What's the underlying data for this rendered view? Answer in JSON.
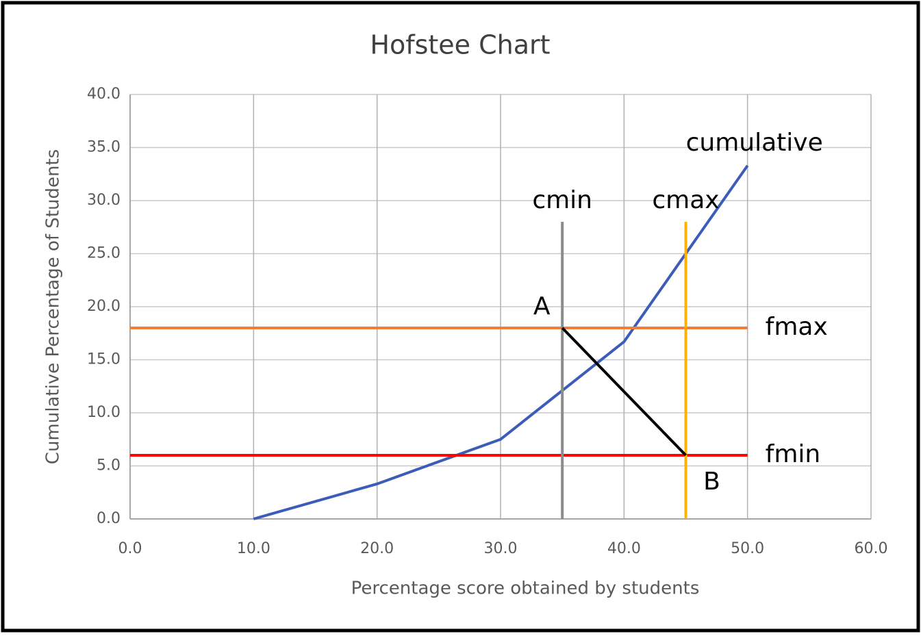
{
  "chart_data": {
    "type": "line",
    "title": "Hofstee Chart",
    "x_label": "Percentage score obtained by students",
    "y_label": "Cumulative Percentage of Students",
    "xlim": [
      0,
      60
    ],
    "xticks": [
      {
        "value": 0,
        "label": "0.0"
      },
      {
        "value": 10,
        "label": "10.0"
      },
      {
        "value": 20,
        "label": "20.0"
      },
      {
        "value": 30,
        "label": "30.0"
      },
      {
        "value": 40,
        "label": "40.0"
      },
      {
        "value": 50,
        "label": "50.0"
      },
      {
        "value": 60,
        "label": "60.0"
      }
    ],
    "ylim": [
      0,
      40
    ],
    "yticks": [
      {
        "value": 0,
        "label": "0.0"
      },
      {
        "value": 5,
        "label": "5.0"
      },
      {
        "value": 10,
        "label": "10.0"
      },
      {
        "value": 15,
        "label": "15.0"
      },
      {
        "value": 20,
        "label": "20.0"
      },
      {
        "value": 25,
        "label": "25.0"
      },
      {
        "value": 30,
        "label": "30.0"
      },
      {
        "value": 35,
        "label": "35.0"
      },
      {
        "value": 40,
        "label": "40.0"
      }
    ],
    "grid": true,
    "series": [
      {
        "name": "cumulative",
        "color": "#3b5cb8",
        "x": [
          10,
          20,
          30,
          40,
          50
        ],
        "values": [
          0,
          3.3,
          7.5,
          16.7,
          33.3
        ]
      },
      {
        "name": "fmax",
        "color": "#f07d3a",
        "x": [
          0,
          50
        ],
        "values": [
          18,
          18
        ]
      },
      {
        "name": "fmin",
        "color": "#ff0000",
        "x": [
          0,
          50
        ],
        "values": [
          6,
          6
        ]
      },
      {
        "name": "cmin",
        "color": "#8c8c8c",
        "x": [
          35,
          35
        ],
        "values": [
          0,
          28
        ]
      },
      {
        "name": "cmax",
        "color": "#ffb000",
        "x": [
          45,
          45
        ],
        "values": [
          0,
          28
        ]
      },
      {
        "color": "#000000",
        "x": [
          35,
          45
        ],
        "values": [
          18,
          6
        ]
      }
    ],
    "annotations": [
      {
        "text": "A",
        "x": 35,
        "y": 18,
        "position": "upper-left"
      },
      {
        "text": "B",
        "x": 45,
        "y": 6,
        "position": "lower-right"
      }
    ]
  }
}
